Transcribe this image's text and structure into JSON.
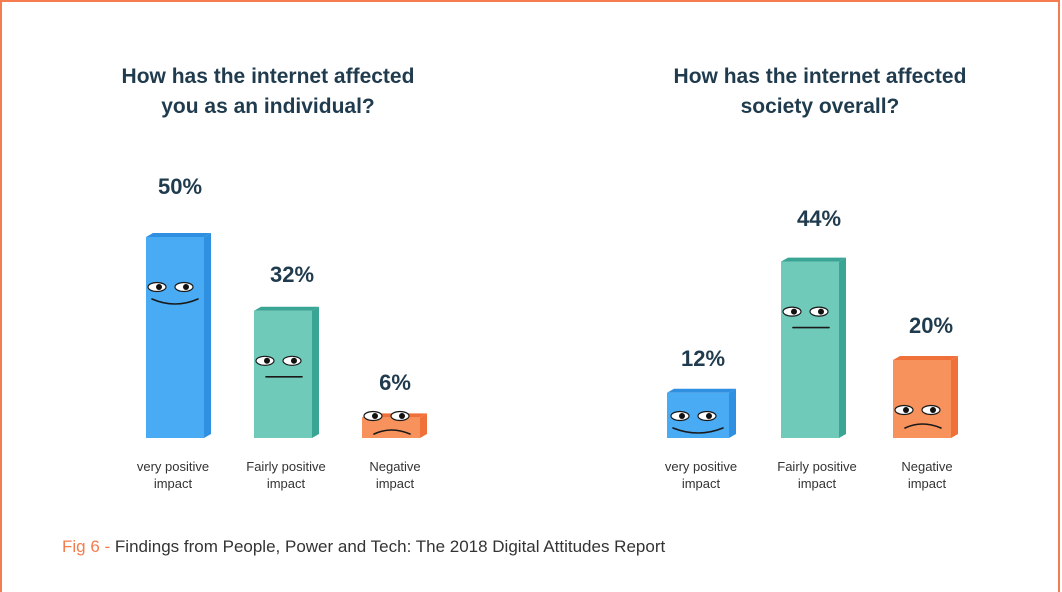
{
  "caption": {
    "fig_label": "Fig 6 - ",
    "text": "Findings from People, Power and Tech: The 2018 Digital Attitudes Report"
  },
  "colors": {
    "very_positive": "#4aabf5",
    "fairly_positive": "#6fcaba",
    "negative": "#f7925c",
    "title": "#1f3b4d",
    "accent": "#f47c4e"
  },
  "chart_data": [
    {
      "type": "bar",
      "title": "How has the internet affected\nyou as an individual?",
      "categories": [
        "very positive\nimpact",
        "Fairly positive\nimpact",
        "Negative\nimpact"
      ],
      "values": [
        50,
        32,
        6
      ],
      "value_labels": [
        "50%",
        "32%",
        "6%"
      ],
      "ylim": [
        0,
        50
      ],
      "grid": false,
      "faces": [
        "happy",
        "neutral",
        "sad"
      ]
    },
    {
      "type": "bar",
      "title": "How has the internet affected\nsociety overall?",
      "categories": [
        "very positive\nimpact",
        "Fairly positive\nimpact",
        "Negative\nimpact"
      ],
      "values": [
        12,
        44,
        20
      ],
      "value_labels": [
        "12%",
        "44%",
        "20%"
      ],
      "ylim": [
        0,
        50
      ],
      "grid": false,
      "faces": [
        "happy",
        "neutral",
        "sad"
      ]
    }
  ]
}
